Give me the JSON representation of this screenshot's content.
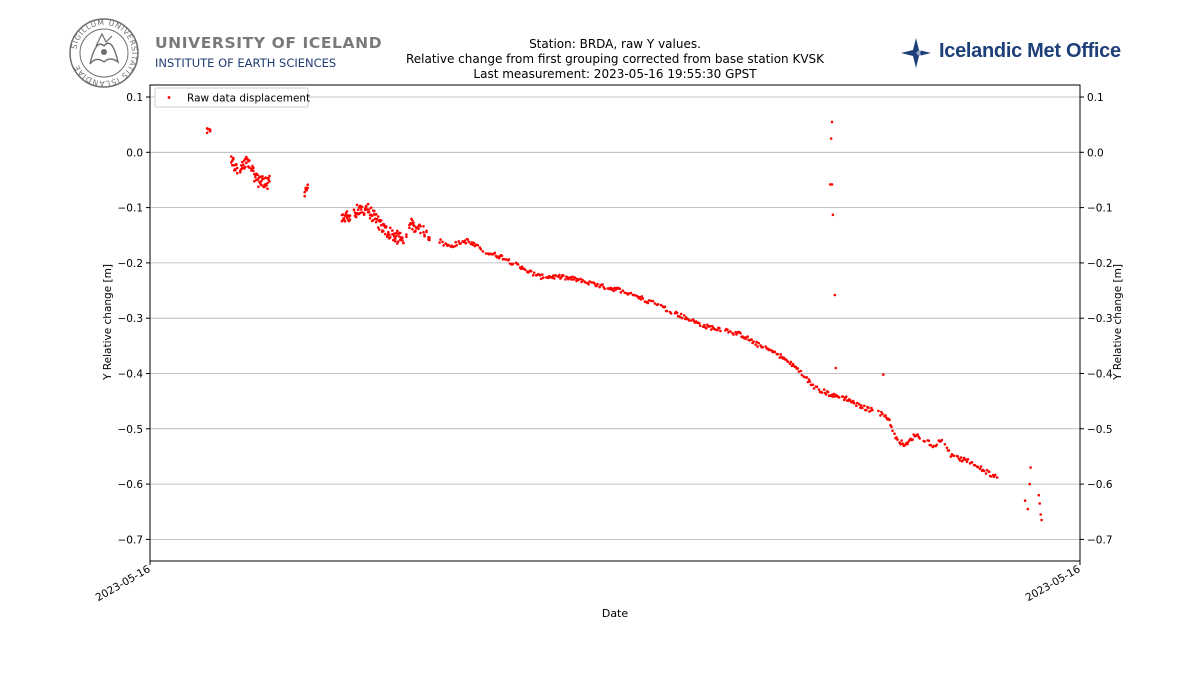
{
  "header": {
    "university_name": "UNIVERSITY OF ICELAND",
    "institute_name": "INSTITUTE OF EARTH SCIENCES",
    "seal_text": "SIGILLUM UNIVERSITATIS ISLANDIAE",
    "met_office_name": "Icelandic Met Office",
    "brand_color": "#1d3f7a"
  },
  "chart_data": {
    "type": "scatter",
    "title_lines": [
      "Station: BRDA, raw Y values.",
      "Relative change from first grouping corrected from base station KVSK",
      "Last measurement: 2023-05-16 19:55:30 GPST"
    ],
    "xlabel": "Date",
    "ylabel": "Y Relative change [m]",
    "ylabel_right": "Y Relative change [m]",
    "ylim": [
      -0.74,
      0.105
    ],
    "xlim": [
      0,
      1
    ],
    "yticks": [
      0.1,
      0.0,
      -0.1,
      -0.2,
      -0.3,
      -0.4,
      -0.5,
      -0.6,
      -0.7
    ],
    "ytick_labels": [
      "0.1",
      "0.0",
      "−0.1",
      "−0.2",
      "−0.3",
      "−0.4",
      "−0.5",
      "−0.6",
      "−0.7"
    ],
    "xticks": [
      0,
      1
    ],
    "xtick_labels": [
      "2023-05-16",
      "2023-05-16"
    ],
    "grid": "horizontal",
    "legend": {
      "label": "Raw data displacement",
      "location": "top-left"
    },
    "series": [
      {
        "name": "Raw data displacement",
        "color": "#ff0000",
        "trend": [
          [
            0.046,
            0.04
          ],
          [
            0.075,
            -0.02
          ],
          [
            0.08,
            -0.04
          ],
          [
            0.09,
            -0.01
          ],
          [
            0.1,
            -0.05
          ],
          [
            0.16,
            -0.07
          ],
          [
            0.19,
            -0.12
          ],
          [
            0.22,
            -0.1
          ],
          [
            0.24,
            -0.14
          ],
          [
            0.26,
            -0.16
          ],
          [
            0.27,
            -0.13
          ],
          [
            0.29,
            -0.15
          ],
          [
            0.31,
            -0.17
          ],
          [
            0.33,
            -0.16
          ],
          [
            0.35,
            -0.18
          ],
          [
            0.37,
            -0.19
          ],
          [
            0.39,
            -0.21
          ],
          [
            0.41,
            -0.225
          ],
          [
            0.43,
            -0.225
          ],
          [
            0.45,
            -0.23
          ],
          [
            0.47,
            -0.24
          ],
          [
            0.5,
            -0.25
          ],
          [
            0.53,
            -0.27
          ],
          [
            0.55,
            -0.285
          ],
          [
            0.57,
            -0.3
          ],
          [
            0.59,
            -0.315
          ],
          [
            0.61,
            -0.32
          ],
          [
            0.63,
            -0.33
          ],
          [
            0.65,
            -0.35
          ],
          [
            0.67,
            -0.365
          ],
          [
            0.69,
            -0.39
          ],
          [
            0.71,
            -0.425
          ],
          [
            0.73,
            -0.44
          ],
          [
            0.745,
            -0.445
          ],
          [
            0.76,
            -0.46
          ],
          [
            0.78,
            -0.47
          ],
          [
            0.79,
            -0.48
          ],
          [
            0.8,
            -0.52
          ],
          [
            0.81,
            -0.53
          ],
          [
            0.82,
            -0.51
          ],
          [
            0.84,
            -0.53
          ],
          [
            0.85,
            -0.52
          ],
          [
            0.86,
            -0.55
          ],
          [
            0.88,
            -0.56
          ],
          [
            0.9,
            -0.58
          ],
          [
            0.91,
            -0.59
          ]
        ],
        "gaps": [
          [
            0.05,
            0.072
          ],
          [
            0.115,
            0.152
          ],
          [
            0.156,
            0.192
          ],
          [
            0.29,
            0.3
          ]
        ],
        "late_points": [
          [
            0.94,
            -0.63
          ],
          [
            0.943,
            -0.645
          ],
          [
            0.945,
            -0.6
          ],
          [
            0.946,
            -0.57
          ],
          [
            0.955,
            -0.62
          ],
          [
            0.956,
            -0.635
          ],
          [
            0.957,
            -0.655
          ],
          [
            0.958,
            -0.665
          ]
        ],
        "outliers": [
          [
            0.729,
            0.055
          ],
          [
            0.728,
            0.025
          ],
          [
            0.727,
            -0.058
          ],
          [
            0.729,
            -0.058
          ],
          [
            0.73,
            -0.113
          ],
          [
            0.732,
            -0.258
          ],
          [
            0.733,
            -0.39
          ],
          [
            0.785,
            -0.402
          ]
        ]
      }
    ]
  }
}
